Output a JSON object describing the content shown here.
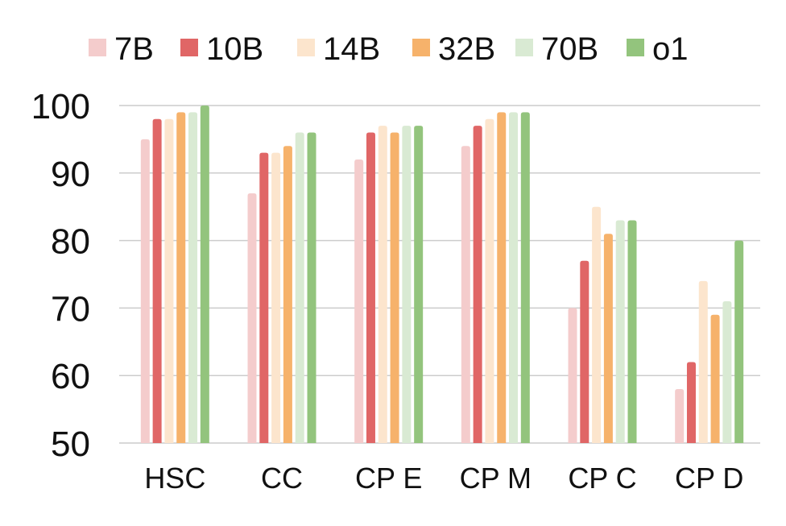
{
  "chart_data": {
    "type": "bar",
    "title": "",
    "xlabel": "",
    "ylabel": "",
    "categories": [
      "HSC",
      "CC",
      "CP E",
      "CP M",
      "CP C",
      "CP D"
    ],
    "ylim": [
      50,
      100
    ],
    "yticks": [
      50,
      60,
      70,
      80,
      90,
      100
    ],
    "grid": true,
    "legend_position": "top",
    "series": [
      {
        "name": "7B",
        "color": "#f4cccc",
        "values": [
          95,
          87,
          92,
          94,
          70,
          58
        ]
      },
      {
        "name": "10B",
        "color": "#e06666",
        "values": [
          98,
          93,
          96,
          97,
          77,
          62
        ]
      },
      {
        "name": "14B",
        "color": "#fce5cd",
        "values": [
          98,
          93,
          97,
          98,
          85,
          74
        ]
      },
      {
        "name": "32B",
        "color": "#f6b26b",
        "values": [
          99,
          94,
          96,
          99,
          81,
          69
        ]
      },
      {
        "name": "70B",
        "color": "#d9ead3",
        "values": [
          99,
          96,
          97,
          99,
          83,
          71
        ]
      },
      {
        "name": "o1",
        "color": "#93c47d",
        "values": [
          100,
          96,
          97,
          99,
          83,
          80
        ]
      }
    ]
  }
}
